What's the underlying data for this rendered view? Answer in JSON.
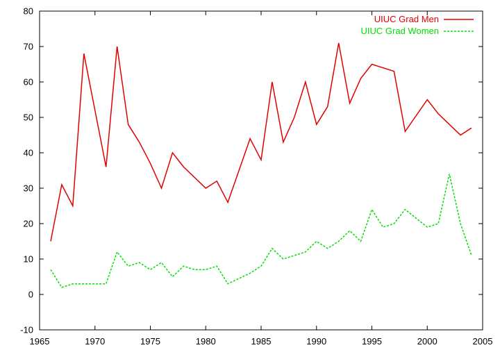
{
  "chart_data": {
    "type": "line",
    "xlim": [
      1965,
      2005
    ],
    "ylim": [
      -10,
      80
    ],
    "x_ticks": [
      1965,
      1970,
      1975,
      1980,
      1985,
      1990,
      1995,
      2000,
      2005
    ],
    "y_ticks": [
      -10,
      0,
      10,
      20,
      30,
      40,
      50,
      60,
      70,
      80
    ],
    "grid": false,
    "legend_position": "top-right",
    "series": [
      {
        "name": "UIUC Grad Men",
        "color": "#e00000",
        "style": "solid",
        "points": [
          [
            1966,
            15
          ],
          [
            1967,
            31
          ],
          [
            1968,
            25
          ],
          [
            1969,
            68
          ],
          [
            1971,
            36
          ],
          [
            1972,
            70
          ],
          [
            1973,
            48
          ],
          [
            1974,
            43
          ],
          [
            1975,
            37
          ],
          [
            1976,
            30
          ],
          [
            1977,
            40
          ],
          [
            1978,
            36
          ],
          [
            1980,
            30
          ],
          [
            1981,
            32
          ],
          [
            1982,
            26
          ],
          [
            1984,
            44
          ],
          [
            1985,
            38
          ],
          [
            1986,
            60
          ],
          [
            1987,
            43
          ],
          [
            1988,
            50
          ],
          [
            1989,
            60
          ],
          [
            1990,
            48
          ],
          [
            1991,
            53
          ],
          [
            1992,
            71
          ],
          [
            1993,
            54
          ],
          [
            1994,
            61
          ],
          [
            1995,
            65
          ],
          [
            1997,
            63
          ],
          [
            1998,
            46
          ],
          [
            2000,
            55
          ],
          [
            2001,
            51
          ],
          [
            2003,
            45
          ],
          [
            2004,
            47
          ]
        ]
      },
      {
        "name": "UIUC Grad Women",
        "color": "#00e000",
        "style": "dashed",
        "points": [
          [
            1966,
            7
          ],
          [
            1967,
            2
          ],
          [
            1968,
            3
          ],
          [
            1969,
            3
          ],
          [
            1971,
            3
          ],
          [
            1972,
            12
          ],
          [
            1973,
            8
          ],
          [
            1974,
            9
          ],
          [
            1975,
            7
          ],
          [
            1976,
            9
          ],
          [
            1977,
            5
          ],
          [
            1978,
            8
          ],
          [
            1979,
            7
          ],
          [
            1980,
            7
          ],
          [
            1981,
            8
          ],
          [
            1982,
            3
          ],
          [
            1984,
            6
          ],
          [
            1985,
            8
          ],
          [
            1986,
            13
          ],
          [
            1987,
            10
          ],
          [
            1989,
            12
          ],
          [
            1990,
            15
          ],
          [
            1991,
            13
          ],
          [
            1992,
            15
          ],
          [
            1993,
            18
          ],
          [
            1994,
            15
          ],
          [
            1995,
            24
          ],
          [
            1996,
            19
          ],
          [
            1997,
            20
          ],
          [
            1998,
            24
          ],
          [
            2000,
            19
          ],
          [
            2001,
            20
          ],
          [
            2002,
            34
          ],
          [
            2003,
            20
          ],
          [
            2004,
            11
          ]
        ]
      }
    ]
  }
}
